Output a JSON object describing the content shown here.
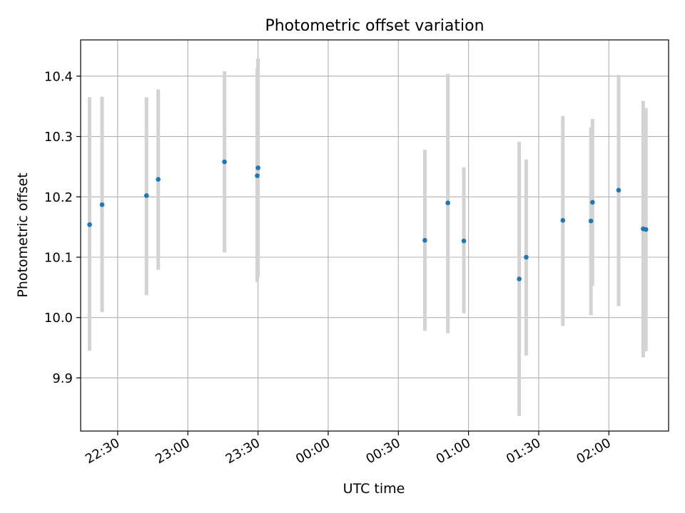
{
  "chart_data": {
    "type": "scatter",
    "title": "Photometric offset variation",
    "xlabel": "UTC time",
    "ylabel": "Photometric offset",
    "xlim": [
      "2000-01-01T22:14:10",
      "2000-01-02T02:25:32"
    ],
    "ylim": [
      9.812,
      10.46
    ],
    "grid": true,
    "x_ticks": [
      {
        "value": "2000-01-01T22:30:00",
        "label": "22:30"
      },
      {
        "value": "2000-01-01T23:00:00",
        "label": "23:00"
      },
      {
        "value": "2000-01-01T23:30:00",
        "label": "23:30"
      },
      {
        "value": "2000-01-02T00:00:00",
        "label": "00:00"
      },
      {
        "value": "2000-01-02T00:30:00",
        "label": "00:30"
      },
      {
        "value": "2000-01-02T01:00:00",
        "label": "01:00"
      },
      {
        "value": "2000-01-02T01:30:00",
        "label": "01:30"
      },
      {
        "value": "2000-01-02T02:00:00",
        "label": "02:00"
      }
    ],
    "y_ticks": [
      {
        "value": 9.9,
        "label": "9.9"
      },
      {
        "value": 10.0,
        "label": "10.0"
      },
      {
        "value": 10.1,
        "label": "10.1"
      },
      {
        "value": 10.2,
        "label": "10.2"
      },
      {
        "value": 10.3,
        "label": "10.3"
      },
      {
        "value": 10.4,
        "label": "10.4"
      }
    ],
    "marker_color": "#1f77b4",
    "errorbar_color": "#d3d3d3",
    "points": [
      {
        "x": "2000-01-01T22:18:00",
        "y": 10.154,
        "ylow": 9.945,
        "yhigh": 10.365
      },
      {
        "x": "2000-01-01T22:23:20",
        "y": 10.187,
        "ylow": 10.009,
        "yhigh": 10.366
      },
      {
        "x": "2000-01-01T22:42:20",
        "y": 10.202,
        "ylow": 10.037,
        "yhigh": 10.365
      },
      {
        "x": "2000-01-01T22:47:20",
        "y": 10.229,
        "ylow": 10.079,
        "yhigh": 10.378
      },
      {
        "x": "2000-01-01T23:15:40",
        "y": 10.258,
        "ylow": 10.108,
        "yhigh": 10.408
      },
      {
        "x": "2000-01-01T23:29:40",
        "y": 10.235,
        "ylow": 10.059,
        "yhigh": 10.413
      },
      {
        "x": "2000-01-01T23:30:00",
        "y": 10.248,
        "ylow": 10.067,
        "yhigh": 10.429
      },
      {
        "x": "2000-01-02T00:41:20",
        "y": 10.128,
        "ylow": 9.978,
        "yhigh": 10.278
      },
      {
        "x": "2000-01-02T00:51:10",
        "y": 10.19,
        "ylow": 9.974,
        "yhigh": 10.404
      },
      {
        "x": "2000-01-02T00:58:00",
        "y": 10.127,
        "ylow": 10.007,
        "yhigh": 10.249
      },
      {
        "x": "2000-01-02T01:21:40",
        "y": 10.064,
        "ylow": 9.837,
        "yhigh": 10.291
      },
      {
        "x": "2000-01-02T01:24:40",
        "y": 10.1,
        "ylow": 9.937,
        "yhigh": 10.262
      },
      {
        "x": "2000-01-02T01:40:20",
        "y": 10.161,
        "ylow": 9.986,
        "yhigh": 10.334
      },
      {
        "x": "2000-01-02T01:52:20",
        "y": 10.16,
        "ylow": 10.004,
        "yhigh": 10.315
      },
      {
        "x": "2000-01-02T01:53:00",
        "y": 10.191,
        "ylow": 10.053,
        "yhigh": 10.329
      },
      {
        "x": "2000-01-02T02:04:10",
        "y": 10.211,
        "ylow": 10.019,
        "yhigh": 10.402
      },
      {
        "x": "2000-01-02T02:14:40",
        "y": 10.147,
        "ylow": 9.934,
        "yhigh": 10.359
      },
      {
        "x": "2000-01-02T02:15:50",
        "y": 10.146,
        "ylow": 9.944,
        "yhigh": 10.347
      }
    ]
  }
}
